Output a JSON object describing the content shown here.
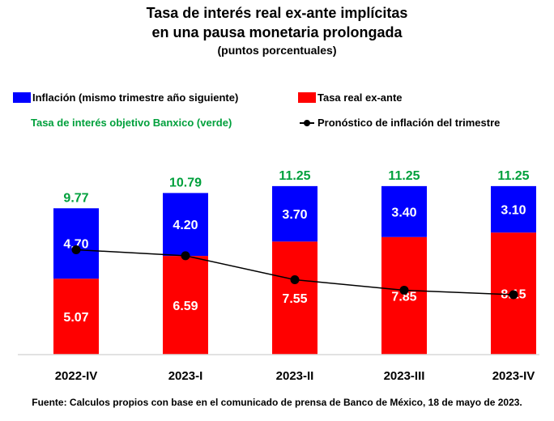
{
  "chart_data": {
    "type": "bar",
    "title": "Tasa de interés real ex-ante implícitas",
    "title_line2": "en una pausa monetaria prolongada",
    "subtitle": "(puntos porcentuales)",
    "categories": [
      "2022-IV",
      "2023-I",
      "2023-II",
      "2023-III",
      "2023-IV"
    ],
    "series": [
      {
        "name": "Tasa real ex-ante",
        "color": "#ff0000",
        "values": [
          5.07,
          6.59,
          7.55,
          7.85,
          8.15
        ]
      },
      {
        "name": "Inflación (mismo trimestre año siguiente)",
        "color": "#0000ff",
        "values": [
          4.7,
          4.2,
          3.7,
          3.4,
          3.1
        ]
      }
    ],
    "totals": {
      "name": "Tasa de interés objetivo Banxico (verde)",
      "color": "#00a03c",
      "values": [
        9.77,
        10.79,
        11.25,
        11.25,
        11.25
      ]
    },
    "line": {
      "name": "Pronóstico de inflación del trimestre",
      "color": "#000000",
      "values": [
        7.0,
        6.6,
        5.0,
        4.3,
        4.0
      ]
    },
    "stacked": true,
    "ylim": [
      0,
      12
    ],
    "grid": false,
    "legend_placement": "top"
  },
  "legend": {
    "inflation": "Inflación (mismo trimestre año siguiente)",
    "real_rate": "Tasa real ex-ante",
    "banxico": "Tasa de interés objetivo Banxico (verde)",
    "forecast": "Pronóstico de inflación del trimestre"
  },
  "source": "Fuente: Calculos propios con base en el comunicado de prensa de Banco de México, 18 de mayo de 2023."
}
